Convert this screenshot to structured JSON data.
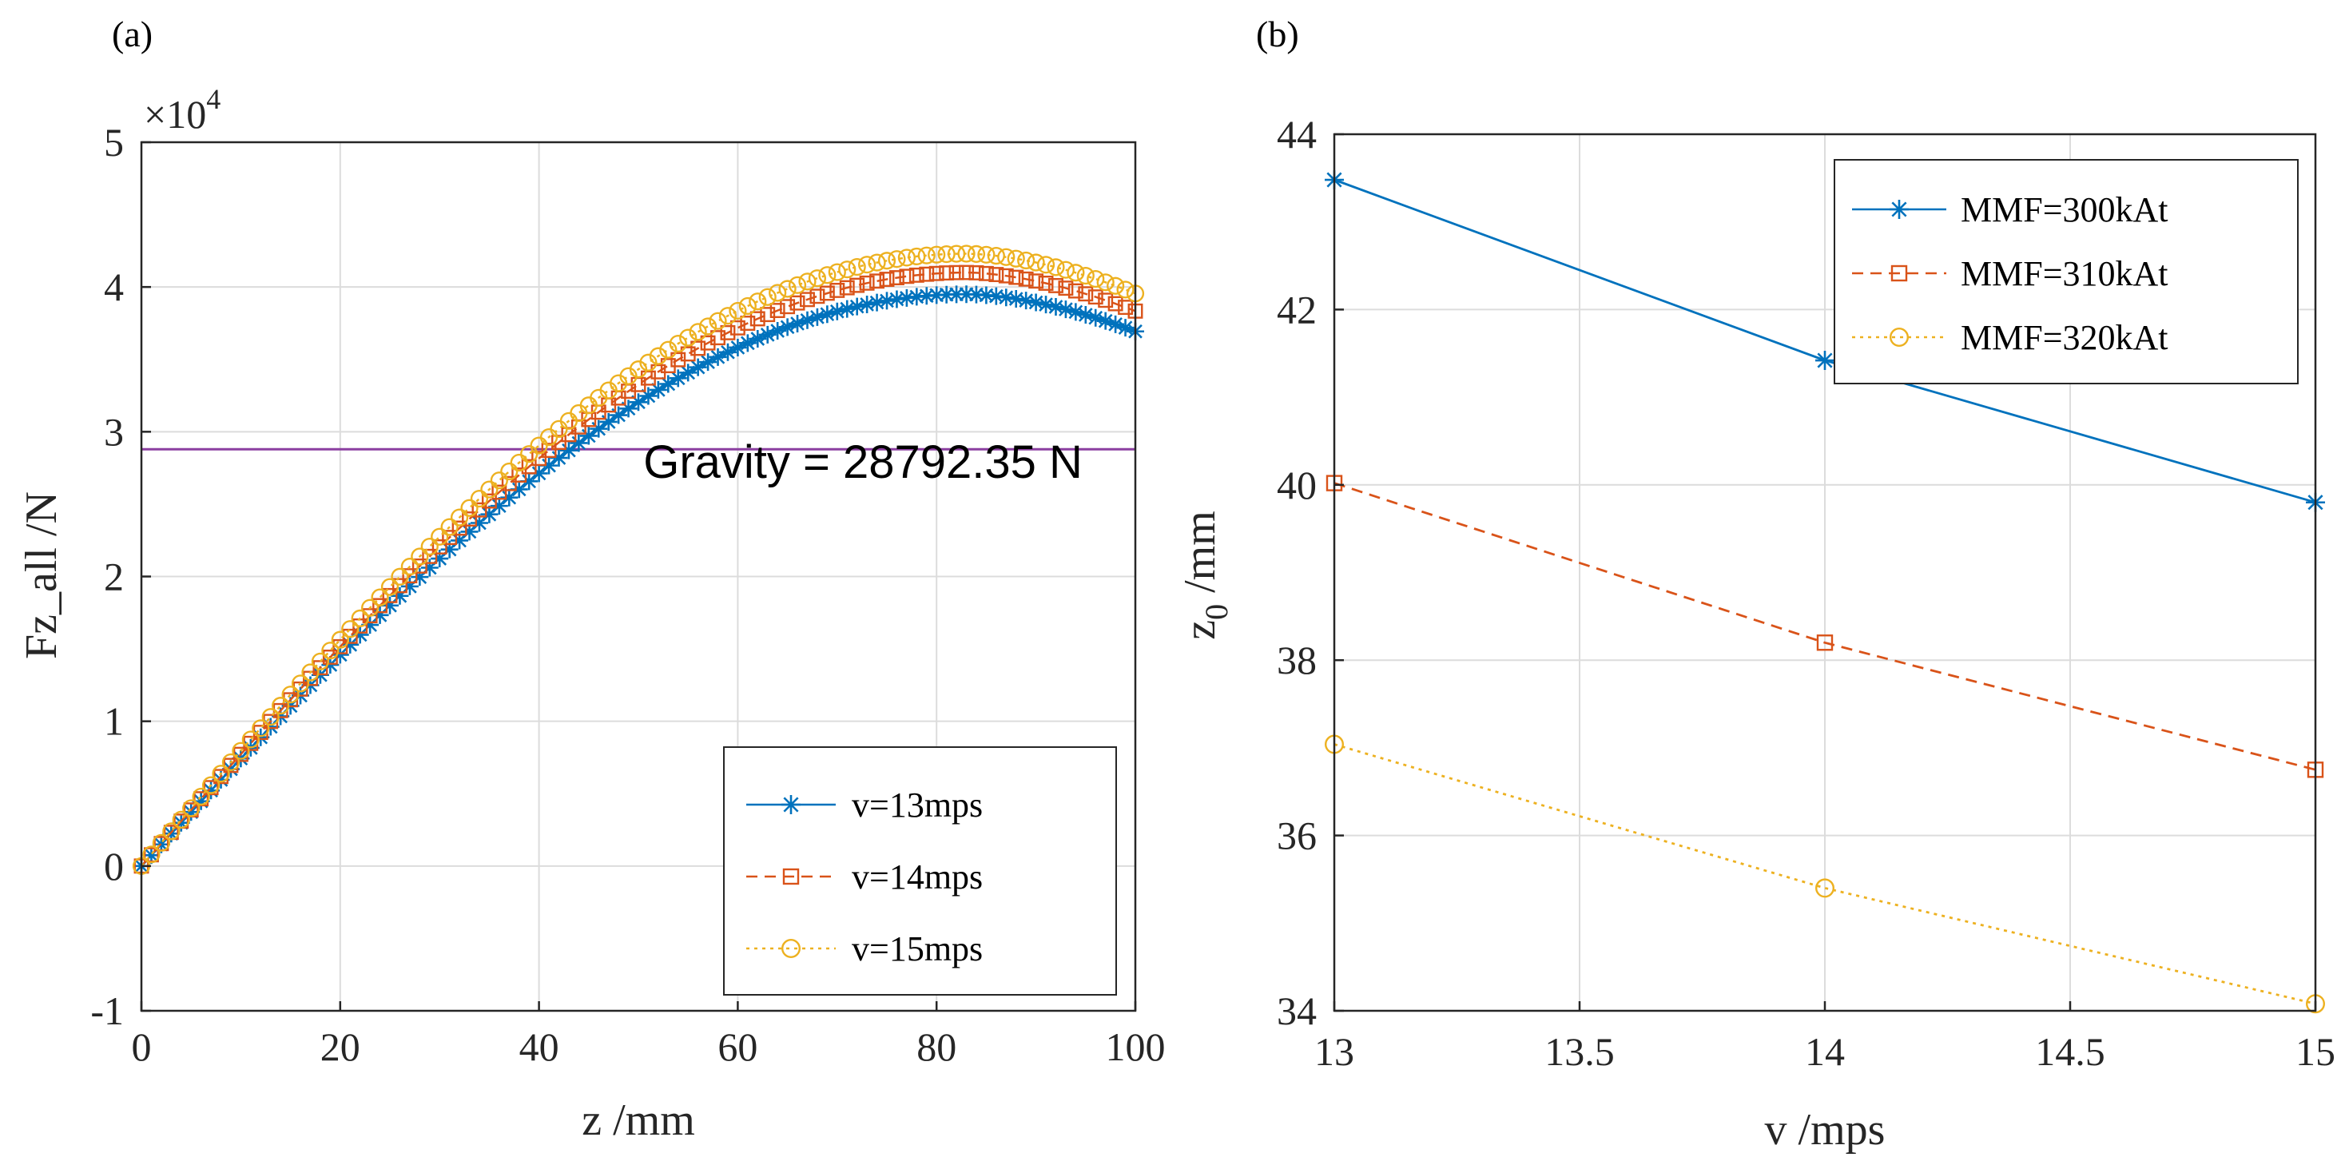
{
  "chart_data": [
    {
      "panel": "(a)",
      "type": "line",
      "xlabel": "z  /mm",
      "ylabel": "Fz_all  /N",
      "exponent_label": "×10",
      "exponent_power": "4",
      "xlim": [
        0,
        100
      ],
      "ylim": [
        -1,
        5
      ],
      "xticks": [
        "0",
        "20",
        "40",
        "60",
        "80",
        "100"
      ],
      "yticks": [
        "-1",
        "0",
        "1",
        "2",
        "3",
        "4",
        "5"
      ],
      "grid": true,
      "legend_position": "bottom-right",
      "annotation": {
        "text": "Gravity = 28792.35 N",
        "value": 2.879235,
        "color": "#8b3fa0"
      },
      "series": [
        {
          "name": "v=13mps",
          "color": "#0072BD",
          "marker": "star",
          "dash": "solid",
          "peak": 3.95
        },
        {
          "name": "v=14mps",
          "color": "#D95319",
          "marker": "square",
          "dash": "dashed",
          "peak": 4.1
        },
        {
          "name": "v=15mps",
          "color": "#EDB120",
          "marker": "circle",
          "dash": "dotted",
          "peak": 4.23
        }
      ]
    },
    {
      "panel": "(b)",
      "type": "line",
      "xlabel": "v  /mps",
      "ylabel": "z",
      "ylabel_sub": "0",
      "ylabel_unit": " /mm",
      "xlim": [
        13,
        15
      ],
      "ylim": [
        34,
        44
      ],
      "xticks": [
        "13",
        "13.5",
        "14",
        "14.5",
        "15"
      ],
      "yticks": [
        "34",
        "36",
        "38",
        "40",
        "42",
        "44"
      ],
      "grid": true,
      "legend_position": "top-right",
      "x": [
        13,
        14,
        15
      ],
      "series": [
        {
          "name": "MMF=300kAt",
          "color": "#0072BD",
          "marker": "star",
          "dash": "solid",
          "values": [
            43.48,
            41.42,
            39.8
          ]
        },
        {
          "name": "MMF=310kAt",
          "color": "#D95319",
          "marker": "square",
          "dash": "dashed",
          "values": [
            40.02,
            38.2,
            36.75
          ]
        },
        {
          "name": "MMF=320kAt",
          "color": "#EDB120",
          "marker": "circle",
          "dash": "dotted",
          "values": [
            37.04,
            35.4,
            34.08
          ]
        }
      ]
    }
  ]
}
